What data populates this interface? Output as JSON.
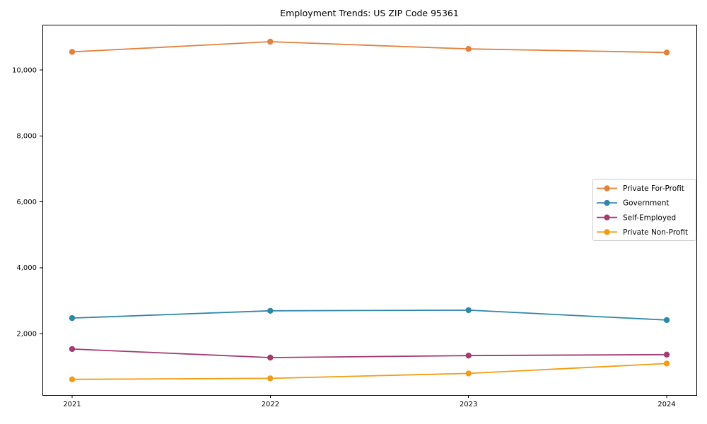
{
  "chart_data": {
    "type": "line",
    "title": "Employment Trends: US ZIP Code 95361",
    "x": [
      2021,
      2022,
      2023,
      2024
    ],
    "x_tick_labels": [
      "2021",
      "2022",
      "2023",
      "2024"
    ],
    "series": [
      {
        "name": "Private For-Profit",
        "color": "#E1813C",
        "values": [
          10550,
          10860,
          10640,
          10530
        ]
      },
      {
        "name": "Government",
        "color": "#2E86AB",
        "values": [
          2470,
          2690,
          2710,
          2410
        ]
      },
      {
        "name": "Self-Employed",
        "color": "#A23B72",
        "values": [
          1530,
          1270,
          1330,
          1360
        ]
      },
      {
        "name": "Private Non-Profit",
        "color": "#F39C12",
        "values": [
          610,
          640,
          790,
          1090
        ]
      }
    ],
    "xlabel": "",
    "ylabel": "",
    "xlim": [
      2020.85,
      2024.15
    ],
    "ylim": [
      134,
      11374
    ],
    "yticks": [
      {
        "value": 2000,
        "label": "2,000"
      },
      {
        "value": 4000,
        "label": "4,000"
      },
      {
        "value": 6000,
        "label": "6,000"
      },
      {
        "value": 8000,
        "label": "8,000"
      },
      {
        "value": 10000,
        "label": "10,000"
      }
    ],
    "grid": false,
    "marker": "circle",
    "legend": {
      "position": "center-right",
      "background": "#ffffff",
      "border_color": "#cccccc",
      "text_color": "#000000"
    },
    "axis_color": "#000000",
    "plot_background": "#ffffff"
  }
}
